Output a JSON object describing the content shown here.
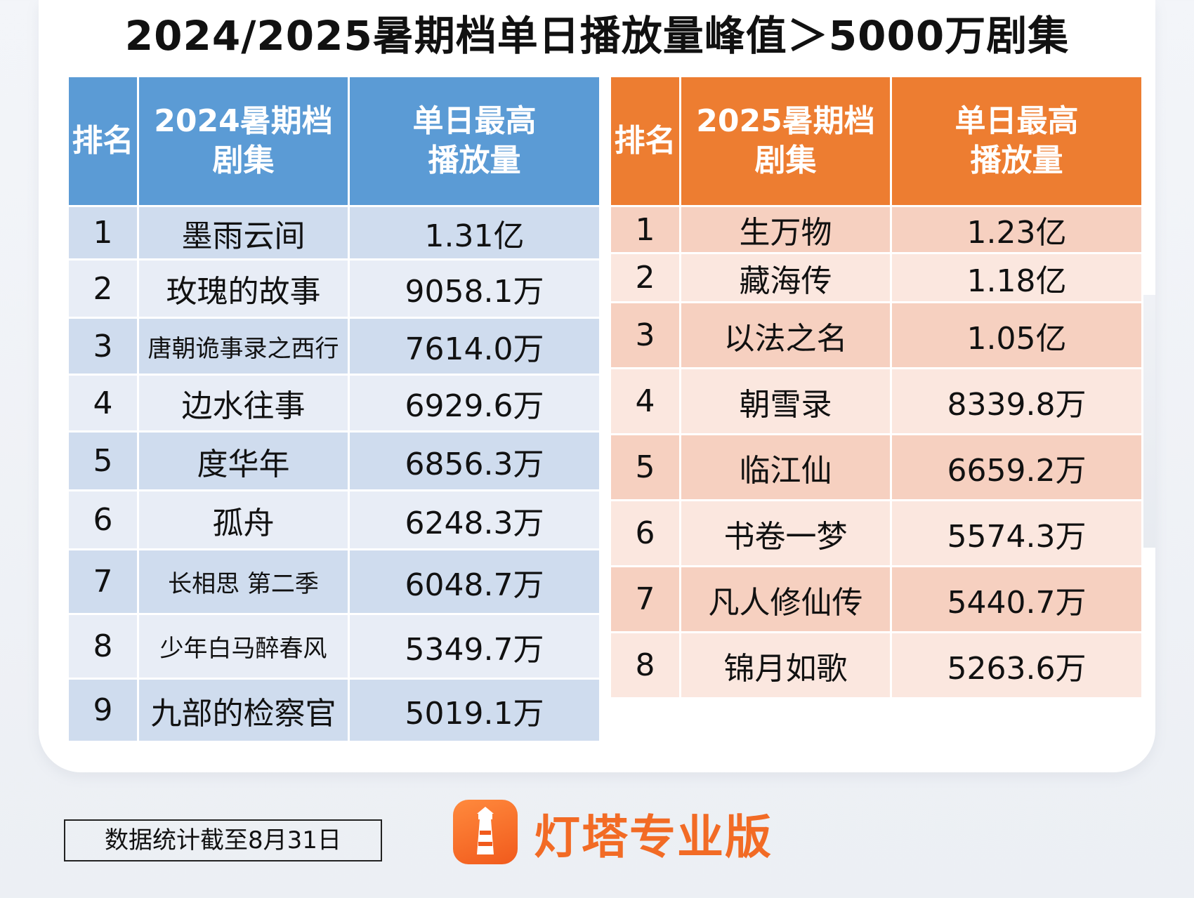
{
  "title": "2024/2025暑期档单日播放量峰值＞5000万剧集",
  "colors": {
    "blue_header": "#5b9bd5",
    "orange_header": "#ed7d31",
    "brand": "#f26b25"
  },
  "table_2024": {
    "headers": [
      "排名",
      "2024暑期档\n剧集",
      "单日最高\n播放量"
    ],
    "rows": [
      {
        "rank": "1",
        "name": "墨雨云间",
        "value": "1.31亿"
      },
      {
        "rank": "2",
        "name": "玫瑰的故事",
        "value": "9058.1万"
      },
      {
        "rank": "3",
        "name": "唐朝诡事录之西行",
        "value": "7614.0万"
      },
      {
        "rank": "4",
        "name": "边水往事",
        "value": "6929.6万"
      },
      {
        "rank": "5",
        "name": "度华年",
        "value": "6856.3万"
      },
      {
        "rank": "6",
        "name": "孤舟",
        "value": "6248.3万"
      },
      {
        "rank": "7",
        "name": "长相思 第二季",
        "value": "6048.7万"
      },
      {
        "rank": "8",
        "name": "少年白马醉春风",
        "value": "5349.7万"
      },
      {
        "rank": "9",
        "name": "九部的检察官",
        "value": "5019.1万"
      }
    ]
  },
  "table_2025": {
    "headers": [
      "排名",
      "2025暑期档\n剧集",
      "单日最高\n播放量"
    ],
    "rows": [
      {
        "rank": "1",
        "name": "生万物",
        "value": "1.23亿"
      },
      {
        "rank": "2",
        "name": "藏海传",
        "value": "1.18亿"
      },
      {
        "rank": "3",
        "name": "以法之名",
        "value": "1.05亿"
      },
      {
        "rank": "4",
        "name": "朝雪录",
        "value": "8339.8万"
      },
      {
        "rank": "5",
        "name": "临江仙",
        "value": "6659.2万"
      },
      {
        "rank": "6",
        "name": "书卷一梦",
        "value": "5574.3万"
      },
      {
        "rank": "7",
        "name": "凡人修仙传",
        "value": "5440.7万"
      },
      {
        "rank": "8",
        "name": "锦月如歌",
        "value": "5263.6万"
      }
    ]
  },
  "footnote": "数据统计截至8月31日",
  "brand": {
    "name": "灯塔专业版",
    "icon": "lighthouse-icon"
  }
}
